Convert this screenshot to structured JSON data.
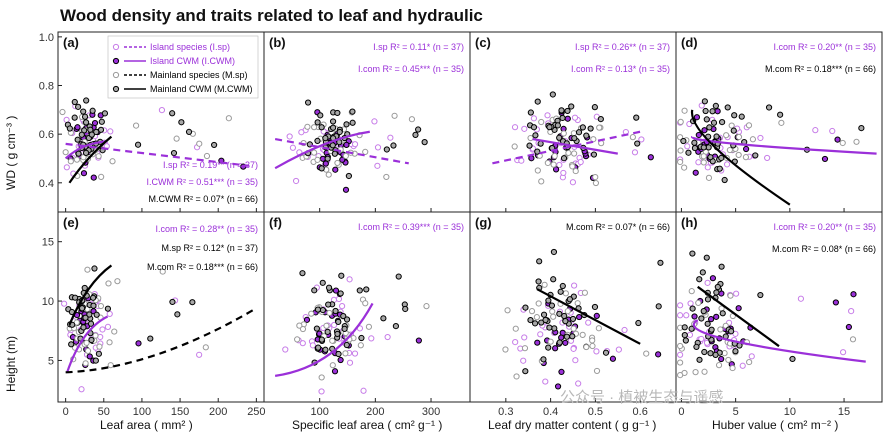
{
  "title": "Wood density and traits related to leaf and hydraulic",
  "watermark": "公众号 · 植被生态与遥感",
  "colors": {
    "island": "#9b30d9",
    "island_light": "#c77de8",
    "mainland": "#000000",
    "mainland_light": "#9a9a9a"
  },
  "y_titles": {
    "top": "WD ( g cm⁻³ )",
    "bottom": "Height (m)"
  },
  "legend": {
    "items": [
      {
        "label": "Island species (I.sp)",
        "style": "open-dashed",
        "group": "island"
      },
      {
        "label": "Island  CWM (I.CWM)",
        "style": "filled-solid",
        "group": "island"
      },
      {
        "label": "Mainland species (M.sp)",
        "style": "open-dashed",
        "group": "mainland"
      },
      {
        "label": "Mainland CWM (M.CWM)",
        "style": "filled-solid",
        "group": "mainland"
      }
    ]
  },
  "chart_data": [
    {
      "type": "scatter",
      "panel": "(a)",
      "xlabel": "Leaf area ( mm² )",
      "ylabel": "WD ( g cm⁻³ )",
      "xlim": [
        -10,
        260
      ],
      "ylim": [
        0.28,
        1.02
      ],
      "xticks": [
        "0",
        "50",
        "100",
        "150",
        "200",
        "250"
      ],
      "yticks": [
        "0.4",
        "0.6",
        "0.8",
        "1.0"
      ],
      "xcenter": 28,
      "xspread": 18,
      "ycenter": 0.56,
      "yspread": 0.12,
      "fits": [
        {
          "group": "island",
          "dash": true,
          "type": "line",
          "x": [
            0,
            240
          ],
          "y": [
            0.56,
            0.47
          ]
        },
        {
          "group": "island",
          "dash": false,
          "type": "curve",
          "x": [
            0,
            25,
            55
          ],
          "y": [
            0.5,
            0.55,
            0.57
          ]
        },
        {
          "group": "mainland",
          "dash": false,
          "type": "curve",
          "x": [
            5,
            30,
            60
          ],
          "y": [
            0.4,
            0.5,
            0.59
          ]
        }
      ],
      "stats": [
        {
          "text": "I.sp R² = 0.19** (n = 37)",
          "group": "island"
        },
        {
          "text": "I.CWM R² = 0.51*** (n = 35)",
          "group": "island"
        },
        {
          "text": "M.CWM R² = 0.07* (n = 66)",
          "group": "mainland"
        }
      ],
      "stats_pos": "bottom-right"
    },
    {
      "type": "scatter",
      "panel": "(b)",
      "xlabel": "Specific leaf area ( cm² g⁻¹ )",
      "ylabel": "",
      "xlim": [
        0,
        370
      ],
      "ylim": [
        0.28,
        1.02
      ],
      "xticks": [
        "100",
        "200",
        "300"
      ],
      "yticks": [],
      "xcenter": 120,
      "xspread": 35,
      "ycenter": 0.55,
      "yspread": 0.12,
      "fits": [
        {
          "group": "island",
          "dash": true,
          "type": "line",
          "x": [
            20,
            260
          ],
          "y": [
            0.58,
            0.48
          ]
        },
        {
          "group": "island",
          "dash": false,
          "type": "curve",
          "x": [
            20,
            110,
            190
          ],
          "y": [
            0.46,
            0.56,
            0.61
          ]
        }
      ],
      "stats": [
        {
          "text": "I.sp R² = 0.11* (n = 37)",
          "group": "island"
        },
        {
          "text": "I.com R² = 0.45*** (n = 35)",
          "group": "island"
        }
      ],
      "stats_pos": "top-right"
    },
    {
      "type": "scatter",
      "panel": "(c)",
      "xlabel": "Leaf dry matter content ( g g⁻¹ )",
      "ylabel": "",
      "xlim": [
        0.22,
        0.68
      ],
      "ylim": [
        0.28,
        1.02
      ],
      "xticks": [
        "0.3",
        "0.4",
        "0.5",
        "0.6"
      ],
      "yticks": [],
      "xcenter": 0.42,
      "xspread": 0.06,
      "ycenter": 0.55,
      "yspread": 0.12,
      "fits": [
        {
          "group": "island",
          "dash": true,
          "type": "line",
          "x": [
            0.27,
            0.6
          ],
          "y": [
            0.48,
            0.61
          ]
        },
        {
          "group": "island",
          "dash": false,
          "type": "line",
          "x": [
            0.36,
            0.55
          ],
          "y": [
            0.58,
            0.52
          ]
        }
      ],
      "stats": [
        {
          "text": "I.sp R² = 0.26** (n = 37)",
          "group": "island"
        },
        {
          "text": "I.com R² = 0.13* (n = 35)",
          "group": "island"
        }
      ],
      "stats_pos": "top-right"
    },
    {
      "type": "scatter",
      "panel": "(d)",
      "xlabel": "Huber value ( cm² m⁻² )",
      "ylabel": "",
      "xlim": [
        -0.5,
        18.5
      ],
      "ylim": [
        0.28,
        1.02
      ],
      "xticks": [
        "0",
        "5",
        "10",
        "15"
      ],
      "yticks": [],
      "xcenter": 3,
      "xspread": 2.2,
      "ycenter": 0.55,
      "yspread": 0.12,
      "fits": [
        {
          "group": "island",
          "dash": false,
          "type": "curve",
          "x": [
            1,
            5,
            18
          ],
          "y": [
            0.59,
            0.56,
            0.52
          ]
        },
        {
          "group": "mainland",
          "dash": false,
          "type": "curve",
          "x": [
            1,
            3,
            10
          ],
          "y": [
            0.7,
            0.55,
            0.31
          ]
        }
      ],
      "stats": [
        {
          "text": "I.com R² = 0.20** (n = 35)",
          "group": "island"
        },
        {
          "text": "M.com R² = 0.18*** (n = 66)",
          "group": "mainland"
        }
      ],
      "stats_pos": "top-right"
    },
    {
      "type": "scatter",
      "panel": "(e)",
      "xlabel": "Leaf area ( mm² )",
      "ylabel": "Height (m)",
      "xlim": [
        -10,
        260
      ],
      "ylim": [
        1.5,
        17.5
      ],
      "xticks": [
        "0",
        "50",
        "100",
        "150",
        "200",
        "250"
      ],
      "yticks": [
        "5",
        "10",
        "15"
      ],
      "xcenter": 28,
      "xspread": 18,
      "ycenter": 8,
      "yspread": 3.5,
      "fits": [
        {
          "group": "island",
          "dash": false,
          "type": "curve",
          "x": [
            2,
            25,
            55
          ],
          "y": [
            4.0,
            7.0,
            8.7
          ]
        },
        {
          "group": "mainland",
          "dash": false,
          "type": "curve",
          "x": [
            5,
            30,
            60
          ],
          "y": [
            8.0,
            11.0,
            13.0
          ]
        },
        {
          "group": "mainland",
          "dash": true,
          "type": "curve",
          "x": [
            0,
            120,
            250
          ],
          "y": [
            4.0,
            5.5,
            9.4
          ]
        }
      ],
      "stats": [
        {
          "text": "I.com R² = 0.28** (n = 35)",
          "group": "island"
        },
        {
          "text": "M.sp R² = 0.12* (n = 37)",
          "group": "mainland"
        },
        {
          "text": "M.com R² = 0.18*** (n = 66)",
          "group": "mainland"
        }
      ],
      "stats_pos": "top-right"
    },
    {
      "type": "scatter",
      "panel": "(f)",
      "xlabel": "Specific leaf area ( cm² g⁻¹ )",
      "ylabel": "",
      "xlim": [
        0,
        370
      ],
      "ylim": [
        1.5,
        17.5
      ],
      "xticks": [
        "100",
        "200",
        "300"
      ],
      "yticks": [],
      "xcenter": 120,
      "xspread": 35,
      "ycenter": 7.5,
      "yspread": 3.5,
      "fits": [
        {
          "group": "island",
          "dash": false,
          "type": "curve",
          "x": [
            20,
            120,
            195
          ],
          "y": [
            3.7,
            5.6,
            9.8
          ]
        }
      ],
      "stats": [
        {
          "text": "I.com R² = 0.39*** (n = 35)",
          "group": "island"
        }
      ],
      "stats_pos": "top-right"
    },
    {
      "type": "scatter",
      "panel": "(g)",
      "xlabel": "Leaf dry matter content ( g g⁻¹ )",
      "ylabel": "",
      "xlim": [
        0.22,
        0.68
      ],
      "ylim": [
        1.5,
        17.5
      ],
      "xticks": [
        "0.3",
        "0.4",
        "0.5",
        "0.6"
      ],
      "yticks": [],
      "xcenter": 0.42,
      "xspread": 0.06,
      "ycenter": 7.5,
      "yspread": 3.5,
      "fits": [
        {
          "group": "mainland",
          "dash": false,
          "type": "line",
          "x": [
            0.37,
            0.6
          ],
          "y": [
            11.0,
            6.4
          ]
        }
      ],
      "stats": [
        {
          "text": "M.com R² = 0.07* (n = 66)",
          "group": "mainland"
        }
      ],
      "stats_pos": "top-right"
    },
    {
      "type": "scatter",
      "panel": "(h)",
      "xlabel": "Huber value ( cm² m⁻² )",
      "ylabel": "",
      "xlim": [
        -0.5,
        18.5
      ],
      "ylim": [
        1.5,
        17.5
      ],
      "xticks": [
        "0",
        "5",
        "10",
        "15"
      ],
      "yticks": [],
      "xcenter": 3,
      "xspread": 2.2,
      "ycenter": 7.5,
      "yspread": 3.5,
      "fits": [
        {
          "group": "island",
          "dash": false,
          "type": "curve",
          "x": [
            1.5,
            4,
            17
          ],
          "y": [
            8.4,
            6.8,
            4.9
          ]
        },
        {
          "group": "mainland",
          "dash": false,
          "type": "line",
          "x": [
            1.5,
            9
          ],
          "y": [
            11.2,
            6.2
          ]
        }
      ],
      "stats": [
        {
          "text": "I.com R² = 0.20** (n = 35)",
          "group": "island"
        },
        {
          "text": "M.com R² = 0.08* (n = 66)",
          "group": "mainland"
        }
      ],
      "stats_pos": "top-right"
    }
  ]
}
